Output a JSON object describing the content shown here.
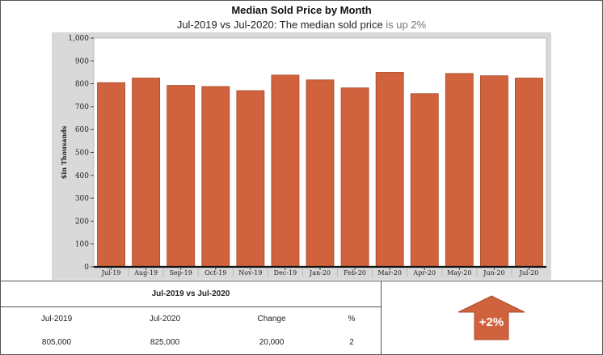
{
  "title": "Median Sold Price by Month",
  "subtitle": {
    "prefix": "Jul-2019 vs Jul-2020: The median sold price ",
    "highlight": "is up 2%"
  },
  "colors": {
    "bar": "#d0623d",
    "bar_edge": "#a84a2c",
    "plot_bg": "#d9d9d9",
    "inner_bg": "#ffffff",
    "baseline": "#111111"
  },
  "chart_data": {
    "type": "bar",
    "title": "Median Sold Price by Month",
    "ylabel": "$in Thousands",
    "xlabel": "",
    "ylim": [
      0,
      1000
    ],
    "yticks": [
      0,
      100,
      200,
      300,
      400,
      500,
      600,
      700,
      800,
      900,
      1000
    ],
    "ytick_labels": [
      "0",
      "100",
      "200",
      "300",
      "400",
      "500",
      "600",
      "700",
      "800",
      "900",
      "1,000"
    ],
    "grid": false,
    "categories": [
      "Jul-19",
      "Aug-19",
      "Sep-19",
      "Oct-19",
      "Nov-19",
      "Dec-19",
      "Jan-20",
      "Feb-20",
      "Mar-20",
      "Apr-20",
      "May-20",
      "Jun-20",
      "Jul-20"
    ],
    "values": [
      805,
      825,
      793,
      788,
      770,
      838,
      817,
      782,
      850,
      757,
      845,
      835,
      825
    ]
  },
  "comparison": {
    "header": "Jul-2019 vs Jul-2020",
    "columns": [
      "Jul-2019",
      "Jul-2020",
      "Change",
      "%"
    ],
    "values": [
      "805,000",
      "825,000",
      "20,000",
      "2"
    ]
  },
  "badge": {
    "label": "+2%",
    "icon": "up-arrow-icon"
  }
}
